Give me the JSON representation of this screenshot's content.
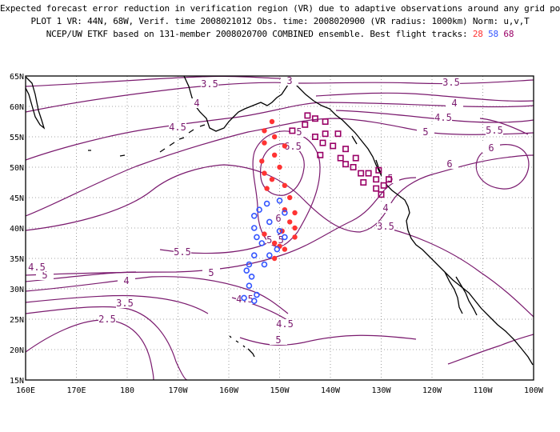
{
  "title": {
    "line1": "Expected forecast error reduction in verification region (VR) due to adaptive observations around any grid point.",
    "line2": "PLOT 1 VR: 44N, 68W, Verif. time 2008021012 Obs. time: 2008020900 (VR radius: 1000km) Norm: u,v,T",
    "line3_prefix": "NCEP/UW ETKF based on 131-member 2008020700 COMBINED ensemble.  Best flight tracks:",
    "track_a": "28",
    "track_b": "58",
    "track_c": "68"
  },
  "colors": {
    "contour": "#7a1a6e",
    "coast": "#000000",
    "grid": "#888888",
    "track_28": "#ff3333",
    "track_58": "#3355ff",
    "track_68": "#990066"
  },
  "axes": {
    "lon_labels": [
      "160E",
      "170E",
      "180",
      "170W",
      "160W",
      "150W",
      "140W",
      "130W",
      "120W",
      "110W",
      "100W"
    ],
    "lat_labels": [
      "15N",
      "20N",
      "25N",
      "30N",
      "35N",
      "40N",
      "45N",
      "50N",
      "55N",
      "60N",
      "65N"
    ],
    "lon_range": [
      160,
      260
    ],
    "lat_range": [
      15,
      65
    ]
  },
  "contour_labels": [
    "3.5",
    "4",
    "4.5",
    "3.5",
    "4",
    "4.5",
    "5",
    "5.5",
    "6",
    "6",
    "6.5",
    "5",
    "4",
    "3.5",
    "5",
    "5.5",
    "5",
    "4.5",
    "4",
    "3.5",
    "2.5",
    "4.5",
    "4.5",
    "5",
    "3",
    "5.5",
    "5",
    "6"
  ],
  "tracks": {
    "track_28": [
      [
        -153,
        56
      ],
      [
        -151.5,
        57.5
      ],
      [
        -151,
        55
      ],
      [
        -153,
        54
      ],
      [
        -149,
        53.5
      ],
      [
        -151,
        52
      ],
      [
        -153.5,
        51
      ],
      [
        -153,
        49
      ],
      [
        -150,
        50
      ],
      [
        -151.5,
        48
      ],
      [
        -149,
        47
      ],
      [
        -152.5,
        46.5
      ],
      [
        -148,
        45
      ],
      [
        -149,
        43
      ],
      [
        -147,
        42.5
      ],
      [
        -148,
        41
      ],
      [
        -147,
        40
      ],
      [
        -149.5,
        39.5
      ],
      [
        -153,
        39
      ],
      [
        -147,
        38.5
      ],
      [
        -151,
        37.5
      ],
      [
        -150,
        37
      ],
      [
        -149,
        36.5
      ],
      [
        -151,
        35
      ]
    ],
    "track_58": [
      [
        -150,
        44.5
      ],
      [
        -152.5,
        44
      ],
      [
        -154,
        43
      ],
      [
        -149,
        42.5
      ],
      [
        -155,
        42
      ],
      [
        -152,
        41
      ],
      [
        -155,
        40
      ],
      [
        -150,
        39.5
      ],
      [
        -154.5,
        38.5
      ],
      [
        -149,
        38.5
      ],
      [
        -153.5,
        37.5
      ],
      [
        -150.5,
        36.5
      ],
      [
        -155,
        35.5
      ],
      [
        -152,
        35.5
      ],
      [
        -156,
        34
      ],
      [
        -153,
        34
      ],
      [
        -156.5,
        33
      ],
      [
        -155.5,
        32
      ],
      [
        -156,
        30.5
      ],
      [
        -154.5,
        29
      ],
      [
        -157,
        28.5
      ],
      [
        -155,
        28
      ]
    ],
    "track_68": [
      [
        -147.5,
        56
      ],
      [
        -144.5,
        58.5
      ],
      [
        -143,
        58
      ],
      [
        -141,
        57.5
      ],
      [
        -145,
        57
      ],
      [
        -141,
        55.5
      ],
      [
        -143,
        55
      ],
      [
        -138.5,
        55.5
      ],
      [
        -141.5,
        54
      ],
      [
        -139.5,
        53.5
      ],
      [
        -142,
        52
      ],
      [
        -137,
        53
      ],
      [
        -138,
        51.5
      ],
      [
        -137,
        50.5
      ],
      [
        -135,
        51.5
      ],
      [
        -135.5,
        50
      ],
      [
        -134,
        49
      ],
      [
        -132.5,
        49
      ],
      [
        -131,
        48
      ],
      [
        -130.5,
        49.5
      ],
      [
        -133.5,
        47.5
      ],
      [
        -129.5,
        47
      ],
      [
        -128.5,
        48
      ],
      [
        -131,
        46.5
      ],
      [
        -130,
        45.5
      ]
    ]
  }
}
